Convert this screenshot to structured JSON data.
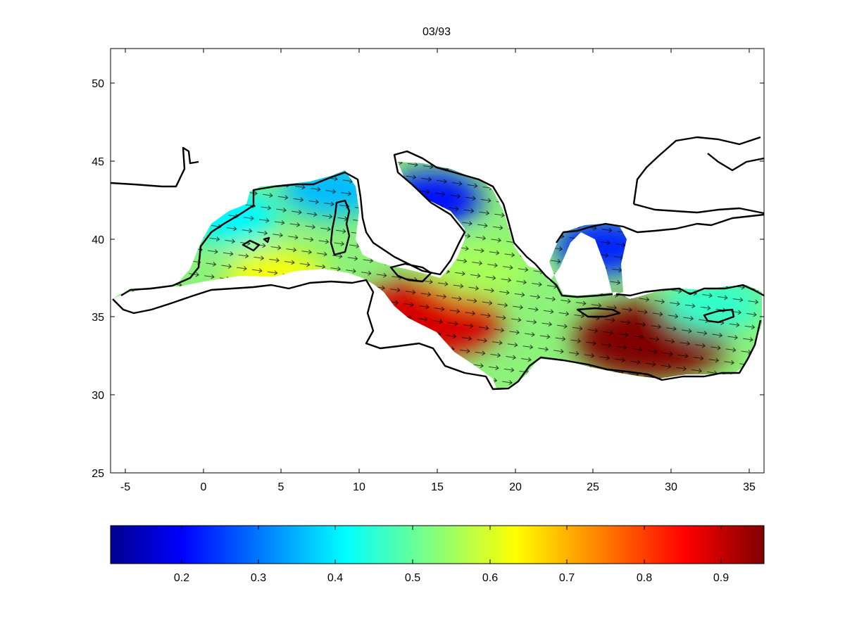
{
  "figure": {
    "title": "03/93",
    "x_ticks": [
      "-5",
      "0",
      "5",
      "10",
      "15",
      "20",
      "25",
      "30",
      "35"
    ],
    "y_ticks": [
      "50",
      "45",
      "40",
      "35",
      "30",
      "25"
    ],
    "colorbar_ticks": [
      "0.2",
      "0.3",
      "0.4",
      "0.5",
      "0.6",
      "0.7",
      "0.8",
      "0.9"
    ]
  },
  "chart_data": {
    "type": "heatmap",
    "title": "03/93",
    "xlim": [
      -5.6,
      36.2
    ],
    "ylim": [
      25,
      52.2
    ],
    "colorbar_range": [
      0.1,
      0.95
    ],
    "colormap": "jet",
    "grid": false,
    "colorbar_placement": "bottom",
    "overlay": "wind vector arrows",
    "colormap_stops": [
      "#00008f",
      "#0000ff",
      "#00ffff",
      "#ffff00",
      "#ff0000",
      "#800000"
    ],
    "field_centers": [
      {
        "lon": 14.5,
        "lat": 34.8,
        "value": 0.88
      },
      {
        "lon": 29.0,
        "lat": 33.5,
        "value": 0.95
      },
      {
        "lon": 18.0,
        "lat": 38.0,
        "value": 0.55
      },
      {
        "lon": 15.0,
        "lat": 42.5,
        "value": 0.2
      },
      {
        "lon": 26.0,
        "lat": 39.5,
        "value": 0.22
      },
      {
        "lon": 5.0,
        "lat": 37.5,
        "value": 0.62
      },
      {
        "lon": 2.0,
        "lat": 41.5,
        "value": 0.4
      },
      {
        "lon": 8.5,
        "lat": 43.2,
        "value": 0.35
      },
      {
        "lon": 33.0,
        "lat": 35.8,
        "value": 0.45
      }
    ]
  }
}
